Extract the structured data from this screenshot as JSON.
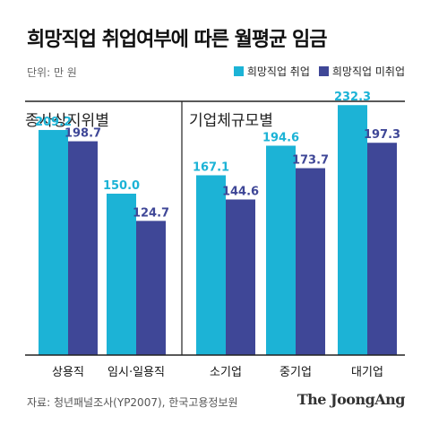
{
  "title": "희망직업 취업여부에 따른 월평균 임금",
  "unit": "단위: 만 원",
  "legend": [
    {
      "label": "희망직업 취업",
      "color": "#1cb3d6"
    },
    {
      "label": "희망직업 미취업",
      "color": "#3f4797"
    }
  ],
  "source": "자료: 청년패널조사(YP2007), 한국고용정보원",
  "brand": "The JoongAng",
  "chart_data": {
    "type": "bar",
    "ylim": [
      0,
      250
    ],
    "colors": {
      "series_1": "#1cb3d6",
      "series_2": "#3f4797",
      "axis": "#222222",
      "divider": "#222222"
    },
    "groups": [
      {
        "label": "종사상지위별",
        "categories": [
          "상용직",
          "임시·일용직"
        ],
        "series": [
          {
            "name": "희망직업 취업",
            "values": [
              209.2,
              150.0
            ],
            "labels": [
              "209.2",
              "150.0"
            ]
          },
          {
            "name": "희망직업 미취업",
            "values": [
              198.7,
              124.7
            ],
            "labels": [
              "198.7",
              "124.7"
            ]
          }
        ]
      },
      {
        "label": "기업체규모별",
        "categories": [
          "소기업",
          "중기업",
          "대기업"
        ],
        "series": [
          {
            "name": "희망직업 취업",
            "values": [
              167.1,
              194.6,
              232.3
            ],
            "labels": [
              "167.1",
              "194.6",
              "232.3"
            ]
          },
          {
            "name": "희망직업 미취업",
            "values": [
              144.6,
              173.7,
              197.3
            ],
            "labels": [
              "144.6",
              "173.7",
              "197.3"
            ]
          }
        ]
      }
    ]
  }
}
